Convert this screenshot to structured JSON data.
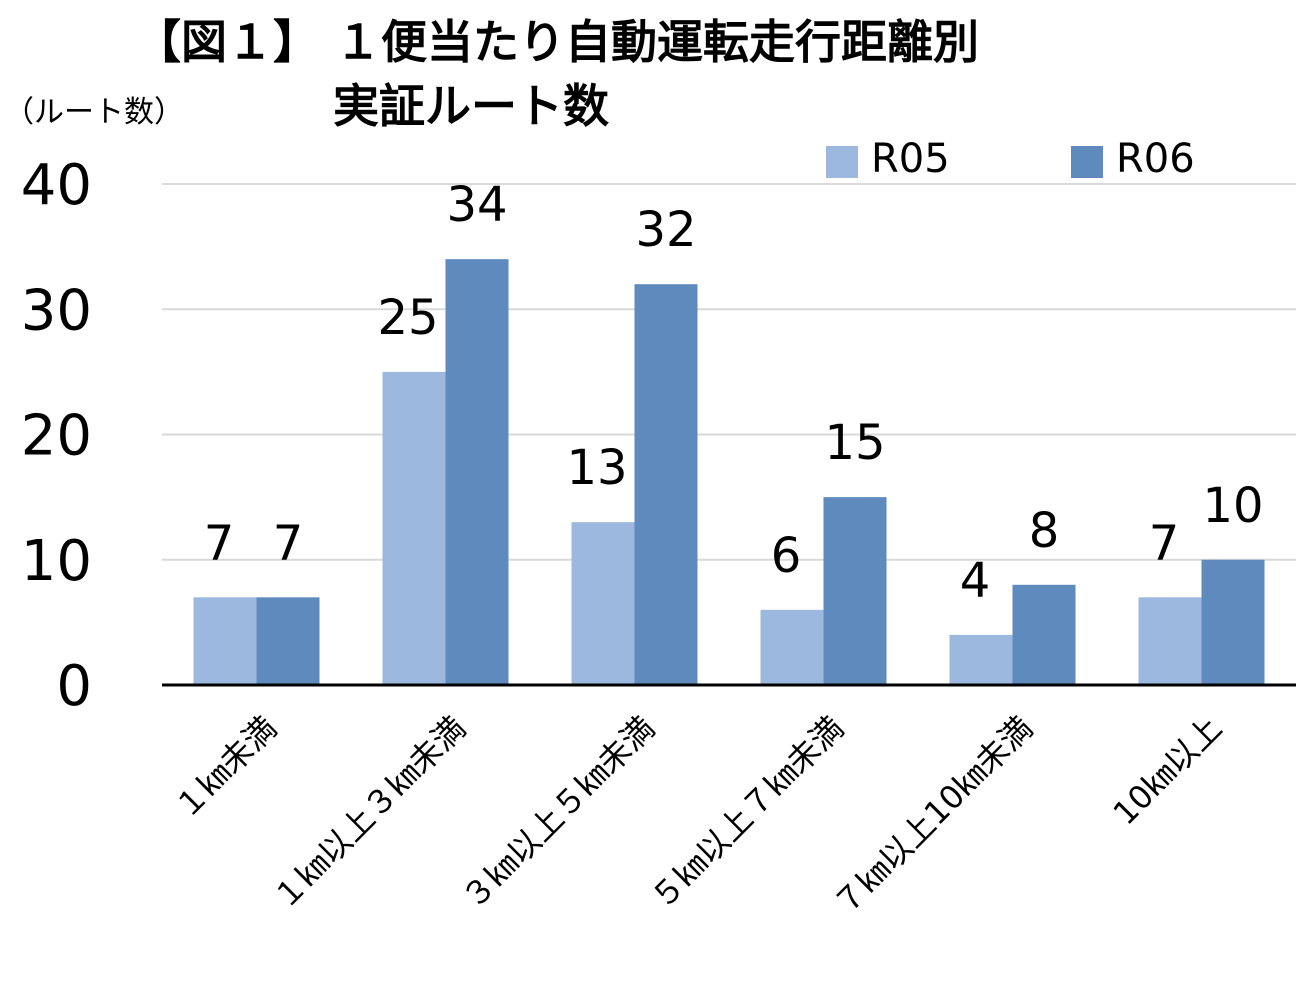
{
  "title_line1": "【図１】 １便当たり自動運転走行距離別",
  "title_line2": "実証ルート数",
  "unit_label": "（ルート数）",
  "chart_data": {
    "type": "bar",
    "categories": [
      "１㎞未満",
      "１㎞以上３㎞未満",
      "３㎞以上５㎞未満",
      "５㎞以上７㎞未満",
      "７㎞以上10㎞未満",
      "10㎞以上"
    ],
    "series": [
      {
        "name": "R05",
        "values": [
          7,
          25,
          13,
          6,
          4,
          7
        ],
        "color": "#9DB8DE"
      },
      {
        "name": "R06",
        "values": [
          7,
          34,
          32,
          15,
          8,
          10
        ],
        "color": "#5E8ABE"
      }
    ],
    "ylim": [
      0,
      40
    ],
    "yticks": [
      0,
      10,
      20,
      30,
      40
    ],
    "grid": true,
    "legend_position": "top-right",
    "gridline_color": "#d9d9d9",
    "axis_color": "#000000"
  }
}
